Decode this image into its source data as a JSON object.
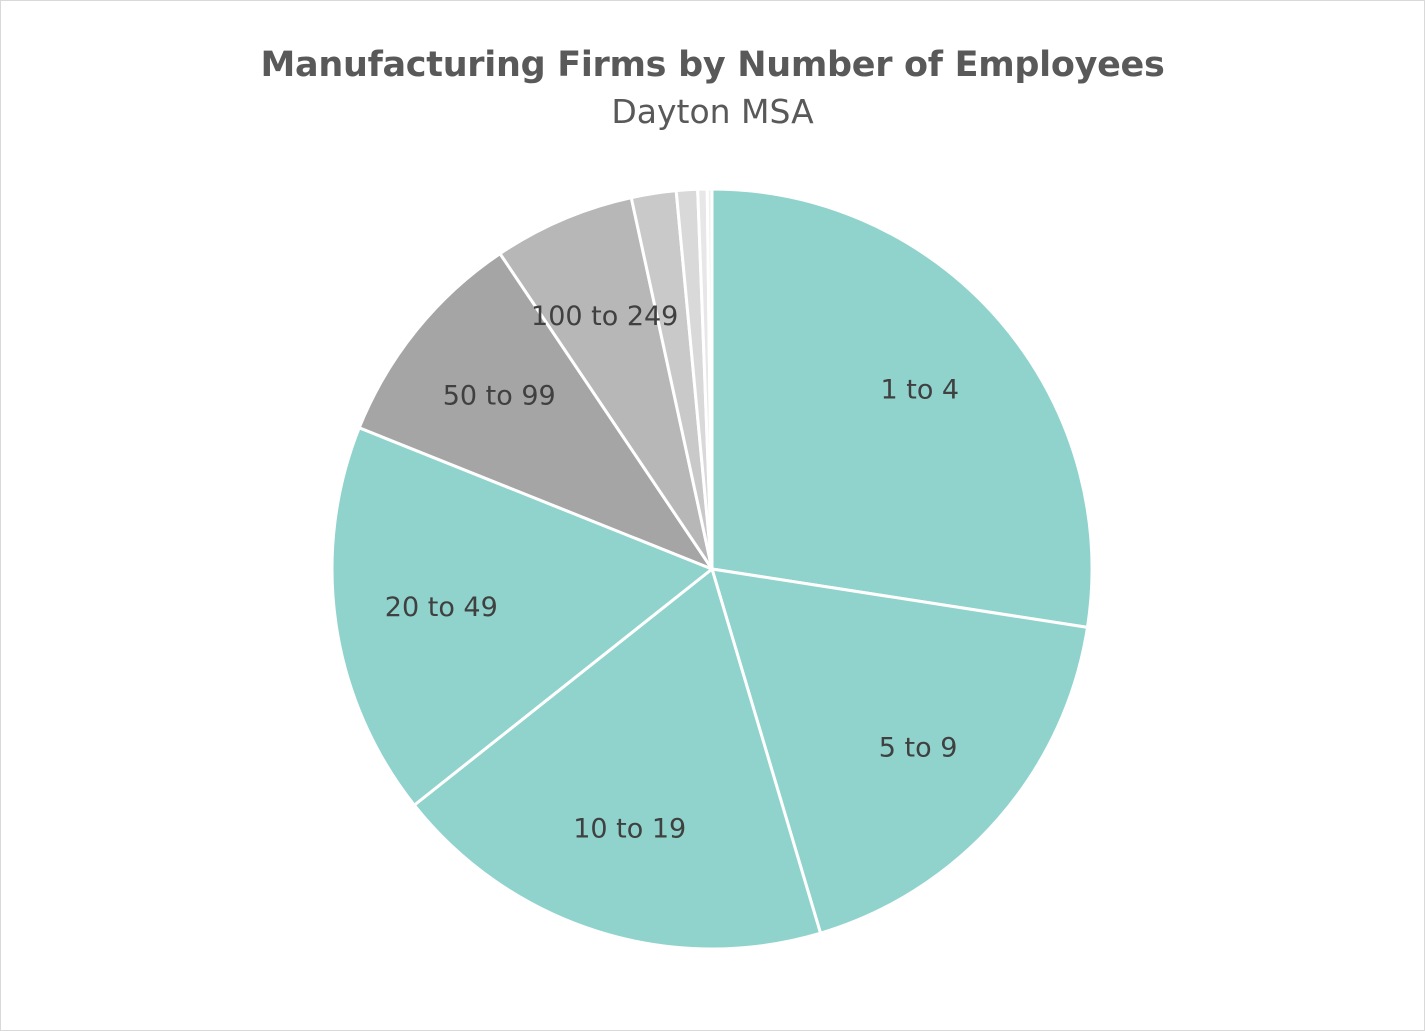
{
  "chart_data": {
    "type": "pie",
    "title": "Manufacturing Firms by Number of Employees",
    "subtitle": "Dayton MSA",
    "slices": [
      {
        "label": "1 to 4",
        "value": 27.4,
        "color": "#8fd3cc",
        "show_label": true
      },
      {
        "label": "5 to 9",
        "value": 17.9,
        "color": "#8fd3cc",
        "show_label": true
      },
      {
        "label": "10 to 19",
        "value": 18.9,
        "color": "#8fd3cc",
        "show_label": true
      },
      {
        "label": "20 to 49",
        "value": 16.7,
        "color": "#8fd3cc",
        "show_label": true
      },
      {
        "label": "50 to 99",
        "value": 9.5,
        "color": "#a5a5a5",
        "show_label": true
      },
      {
        "label": "100 to 249",
        "value": 6.0,
        "color": "#b7b7b7",
        "show_label": true
      },
      {
        "label": "",
        "value": 1.9,
        "color": "#c9c9c9",
        "show_label": false
      },
      {
        "label": "",
        "value": 0.9,
        "color": "#d9d9d9",
        "show_label": false
      },
      {
        "label": "",
        "value": 0.4,
        "color": "#e7e7e7",
        "show_label": false
      },
      {
        "label": "",
        "value": 0.2,
        "color": "#f0f0f0",
        "show_label": false
      }
    ],
    "start": "12 o'clock",
    "direction": "clockwise",
    "legend": "none"
  }
}
